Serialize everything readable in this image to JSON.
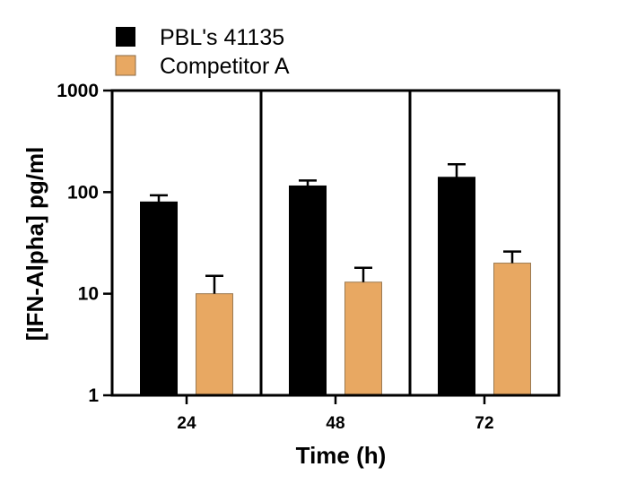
{
  "chart_data": {
    "type": "bar",
    "title": "",
    "xlabel": "Time (h)",
    "ylabel": "[IFN-Alpha] pg/ml",
    "y_scale": "log",
    "ylim": [
      1,
      1000
    ],
    "y_ticks": [
      "1",
      "10",
      "100",
      "1000"
    ],
    "categories": [
      "24",
      "48",
      "72"
    ],
    "legend_position": "top-left",
    "grid": false,
    "series": [
      {
        "name": "PBL's 41135",
        "color": "#000000",
        "values": [
          80,
          115,
          140
        ],
        "error_upper": [
          93,
          130,
          188
        ]
      },
      {
        "name": "Competitor A",
        "color": "#e8a862",
        "values": [
          10,
          13,
          20
        ],
        "error_upper": [
          15,
          18,
          26
        ]
      }
    ]
  }
}
